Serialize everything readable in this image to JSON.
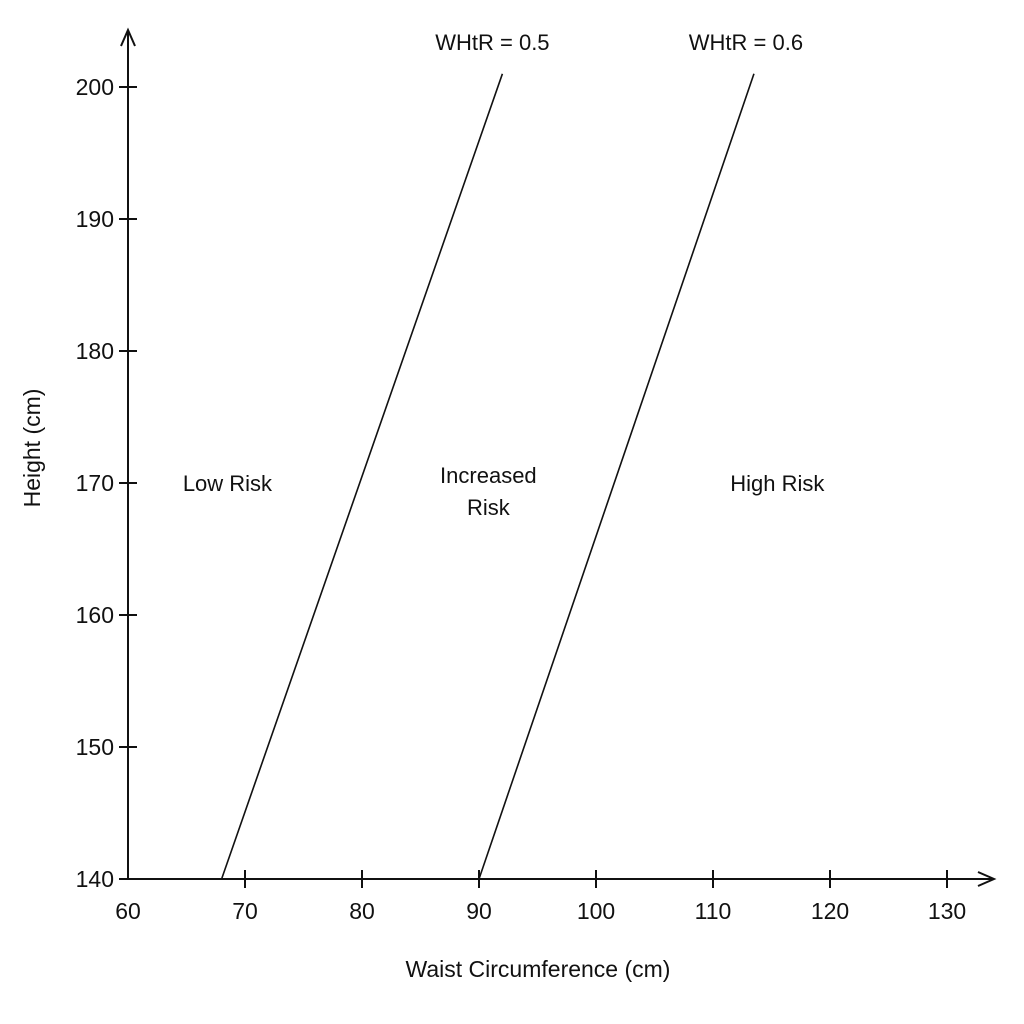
{
  "chart_data": {
    "type": "line",
    "title": "",
    "xlabel": "Waist Circumference (cm)",
    "ylabel": "Height (cm)",
    "xlim": [
      60,
      130
    ],
    "ylim": [
      140,
      200
    ],
    "x_ticks": [
      60,
      70,
      80,
      90,
      100,
      110,
      120,
      130
    ],
    "y_ticks": [
      140,
      150,
      160,
      170,
      180,
      190,
      200
    ],
    "x_tick_labels": [
      "60",
      "70",
      "80",
      "90",
      "100",
      "110",
      "120",
      "130"
    ],
    "y_tick_labels": [
      "140",
      "150",
      "160",
      "170",
      "180",
      "190",
      "200"
    ],
    "grid": false,
    "series": [
      {
        "name": "WHtR = 0.5",
        "points": [
          [
            68,
            140
          ],
          [
            92,
            201
          ]
        ]
      },
      {
        "name": "WHtR = 0.6",
        "points": [
          [
            90,
            140
          ],
          [
            113.5,
            201
          ]
        ]
      }
    ],
    "annotations": [
      {
        "lines": [
          "Low Risk"
        ],
        "x": 68.5,
        "y": 170
      },
      {
        "lines": [
          "Increased",
          "Risk"
        ],
        "x": 90.8,
        "y": 169.4
      },
      {
        "lines": [
          "High Risk"
        ],
        "x": 115.5,
        "y": 170
      }
    ],
    "colors": {
      "ink": "#111111",
      "background": "#ffffff"
    }
  }
}
